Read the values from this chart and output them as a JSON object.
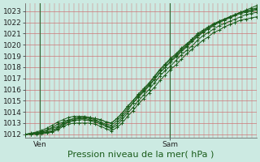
{
  "title": "",
  "xlabel": "Pression niveau de la mer( hPa )",
  "ylabel": "",
  "bg_color": "#cceae2",
  "line_color": "#1a5c1a",
  "ylim": [
    1011.7,
    1023.7
  ],
  "xlim": [
    0,
    48
  ],
  "yticks": [
    1012,
    1013,
    1014,
    1015,
    1016,
    1017,
    1018,
    1019,
    1020,
    1021,
    1022,
    1023
  ],
  "xtick_labels": [
    "Ven",
    "Sam"
  ],
  "xtick_pos": [
    3,
    30
  ],
  "vline_pos": [
    3,
    30
  ],
  "ensemble": [
    [
      1012.0,
      1012.05,
      1012.1,
      1012.15,
      1012.2,
      1012.3,
      1012.5,
      1012.8,
      1013.1,
      1013.3,
      1013.4,
      1013.4,
      1013.3,
      1013.2,
      1013.0,
      1012.8,
      1012.6,
      1013.0,
      1013.5,
      1014.1,
      1014.8,
      1015.4,
      1015.9,
      1016.4,
      1016.9,
      1017.5,
      1018.0,
      1018.5,
      1019.0,
      1019.5,
      1019.9,
      1020.4,
      1020.8,
      1021.2,
      1021.5,
      1021.8,
      1022.0,
      1022.2,
      1022.5,
      1022.7,
      1022.9,
      1023.1,
      1023.3,
      1023.5
    ],
    [
      1012.0,
      1012.05,
      1012.1,
      1012.2,
      1012.3,
      1012.5,
      1012.7,
      1013.0,
      1013.2,
      1013.4,
      1013.5,
      1013.5,
      1013.5,
      1013.4,
      1013.3,
      1013.1,
      1013.0,
      1013.4,
      1013.9,
      1014.5,
      1015.0,
      1015.6,
      1016.1,
      1016.6,
      1017.2,
      1017.8,
      1018.3,
      1018.8,
      1019.2,
      1019.7,
      1020.1,
      1020.5,
      1021.0,
      1021.3,
      1021.6,
      1021.9,
      1022.1,
      1022.3,
      1022.5,
      1022.7,
      1022.9,
      1023.0,
      1023.1,
      1023.2
    ],
    [
      1012.0,
      1012.0,
      1012.05,
      1012.1,
      1012.2,
      1012.3,
      1012.6,
      1012.9,
      1013.1,
      1013.2,
      1013.3,
      1013.3,
      1013.2,
      1013.1,
      1012.9,
      1012.7,
      1012.5,
      1012.8,
      1013.3,
      1013.9,
      1014.4,
      1015.0,
      1015.5,
      1016.0,
      1016.6,
      1017.2,
      1017.7,
      1018.1,
      1018.6,
      1019.1,
      1019.5,
      1019.9,
      1020.4,
      1020.8,
      1021.1,
      1021.4,
      1021.7,
      1021.9,
      1022.1,
      1022.3,
      1022.5,
      1022.7,
      1022.8,
      1022.9
    ],
    [
      1012.0,
      1012.0,
      1012.0,
      1012.05,
      1012.1,
      1012.2,
      1012.4,
      1012.7,
      1012.9,
      1013.0,
      1013.0,
      1013.0,
      1013.0,
      1012.9,
      1012.7,
      1012.5,
      1012.3,
      1012.6,
      1013.0,
      1013.6,
      1014.1,
      1014.7,
      1015.2,
      1015.7,
      1016.2,
      1016.8,
      1017.3,
      1017.8,
      1018.2,
      1018.7,
      1019.2,
      1019.6,
      1020.0,
      1020.4,
      1020.7,
      1021.1,
      1021.3,
      1021.6,
      1021.8,
      1022.0,
      1022.2,
      1022.3,
      1022.4,
      1022.5
    ],
    [
      1012.0,
      1012.05,
      1012.15,
      1012.25,
      1012.4,
      1012.6,
      1012.9,
      1013.1,
      1013.3,
      1013.4,
      1013.5,
      1013.5,
      1013.4,
      1013.3,
      1013.1,
      1012.9,
      1012.8,
      1013.2,
      1013.7,
      1014.3,
      1014.8,
      1015.3,
      1015.8,
      1016.3,
      1016.9,
      1017.5,
      1018.0,
      1018.5,
      1018.9,
      1019.4,
      1019.8,
      1020.3,
      1020.7,
      1021.1,
      1021.4,
      1021.7,
      1022.0,
      1022.2,
      1022.4,
      1022.6,
      1022.8,
      1022.9,
      1023.0,
      1023.1
    ],
    [
      1012.0,
      1012.1,
      1012.2,
      1012.35,
      1012.55,
      1012.8,
      1013.1,
      1013.3,
      1013.5,
      1013.6,
      1013.6,
      1013.6,
      1013.5,
      1013.4,
      1013.3,
      1013.1,
      1013.0,
      1013.4,
      1013.9,
      1014.5,
      1015.0,
      1015.5,
      1016.0,
      1016.5,
      1017.1,
      1017.7,
      1018.2,
      1018.7,
      1019.1,
      1019.6,
      1020.0,
      1020.5,
      1020.9,
      1021.2,
      1021.5,
      1021.8,
      1022.1,
      1022.3,
      1022.5,
      1022.7,
      1022.9,
      1023.0,
      1023.15,
      1023.3
    ]
  ],
  "fontsize_label": 8,
  "fontsize_tick": 6.5,
  "grid_color": "#cc7777",
  "grid_lw_major": 0.5,
  "grid_lw_minor": 0.35
}
